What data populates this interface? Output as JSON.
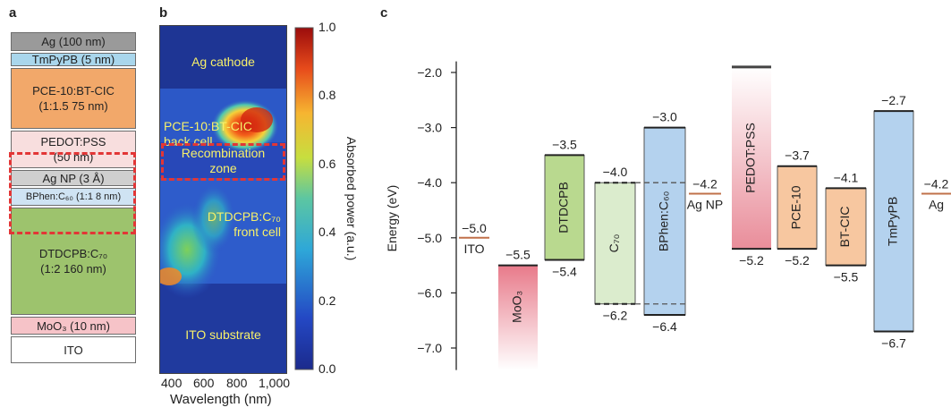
{
  "panel_a": {
    "label": "a",
    "layers": [
      {
        "name": "Ag (100 nm)",
        "color": "#9a9a9a"
      },
      {
        "name": "TmPyPB (5 nm)",
        "color": "#a9d6ec"
      },
      {
        "name": "PCE-10:BT-CIC\n(1:1.5 75 nm)",
        "color": "#f2a86a"
      },
      {
        "name": "PEDOT:PSS\n(50 nm)",
        "color": "#f8dede"
      },
      {
        "name": "Ag NP (3 Å)",
        "color": "#cfcfcf"
      },
      {
        "name": "BPhen:C₆₀ (1:1 8 nm)",
        "color": "#cfe3f3"
      },
      {
        "name": "DTDCPB:C₇₀\n(1:2 160 nm)",
        "color": "#9dc36d"
      },
      {
        "name": "MoO₃ (10 nm)",
        "color": "#f6c3c8"
      },
      {
        "name": "ITO",
        "color": "#ffffff"
      }
    ]
  },
  "panel_b": {
    "label": "b",
    "region_labels": {
      "ag_cathode": "Ag cathode",
      "back_cell": "PCE-10:BT-CIC\nback cell",
      "recombination": "Recombination\nzone",
      "front_cell": "DTDCPB:C₇₀\nfront cell",
      "substrate": "ITO substrate"
    },
    "xlabel": "Wavelength (nm)",
    "xticks": [
      "400",
      "600",
      "800",
      "1,000"
    ],
    "colorbar_label": "Absorbed power (a.u.)",
    "colorbar_ticks": [
      "0.0",
      "0.2",
      "0.4",
      "0.6",
      "0.8",
      "1.0"
    ]
  },
  "chart_data": {
    "type": "energy-level diagram",
    "panel_label": "c",
    "ylabel": "Energy (eV)",
    "ylim": [
      -7.4,
      -1.8
    ],
    "yticks": [
      "−2.0",
      "−3.0",
      "−4.0",
      "−5.0",
      "−6.0",
      "−7.0"
    ],
    "levels": [
      {
        "name": "ITO",
        "type": "line",
        "value": -5.0,
        "value_label": "−5.0",
        "color": "#c0704a"
      },
      {
        "name": "MoO₃",
        "type": "box",
        "top": -5.5,
        "bottom": -7.4,
        "top_label": "−5.5",
        "color": "#e87a8a",
        "fade": "bottom"
      },
      {
        "name": "DTDCPB",
        "type": "box",
        "top": -3.5,
        "bottom": -5.4,
        "top_label": "−3.5",
        "bottom_label": "−5.4",
        "color": "#b9d98f"
      },
      {
        "name": "C₇₀",
        "type": "box",
        "top": -4.0,
        "bottom": -6.2,
        "top_label": "−4.0",
        "bottom_label": "−6.2",
        "color": "#dbeccd"
      },
      {
        "name": "BPhen:C₆₀",
        "type": "box",
        "top": -3.0,
        "bottom": -6.4,
        "top_label": "−3.0",
        "bottom_label": "−6.4",
        "color": "#b4d2ee"
      },
      {
        "name": "Ag NP",
        "type": "line",
        "value": -4.2,
        "value_label": "−4.2",
        "color": "#c0704a"
      },
      {
        "name": "PEDOT:PSS",
        "type": "box",
        "top": -1.9,
        "bottom": -5.2,
        "bottom_label": "−5.2",
        "color": "#e98d9a",
        "fade": "top"
      },
      {
        "name": "PCE-10",
        "type": "box",
        "top": -3.7,
        "bottom": -5.2,
        "top_label": "−3.7",
        "bottom_label": "−5.2",
        "color": "#f7c7a0"
      },
      {
        "name": "BT-CIC",
        "type": "box",
        "top": -4.1,
        "bottom": -5.5,
        "top_label": "−4.1",
        "bottom_label": "−5.5",
        "color": "#f7c7a0"
      },
      {
        "name": "TmPyPB",
        "type": "box",
        "top": -2.7,
        "bottom": -6.7,
        "top_label": "−2.7",
        "bottom_label": "−6.7",
        "color": "#b4d2ee"
      },
      {
        "name": "Ag",
        "type": "line",
        "value": -4.2,
        "value_label": "−4.2",
        "color": "#c0704a"
      }
    ]
  }
}
